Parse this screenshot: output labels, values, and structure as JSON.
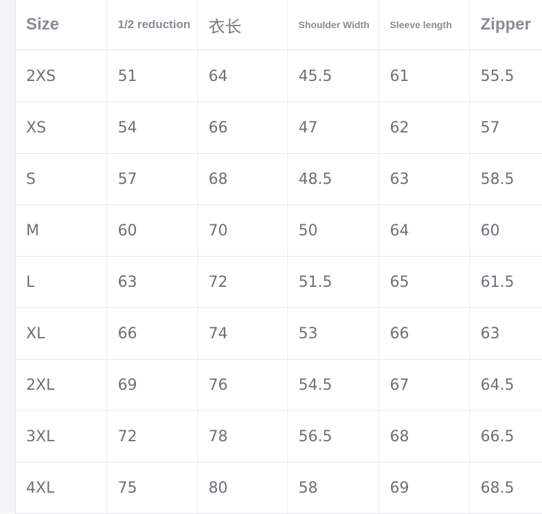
{
  "headers": [
    "Size",
    "1/2 reduction",
    "衣长",
    "Shoulder Width",
    "Sleeve length",
    "Zipper"
  ],
  "rows": [
    [
      "2XS",
      "51",
      "64",
      "45.5",
      "61",
      "55.5"
    ],
    [
      "XS",
      "54",
      "66",
      "47",
      "62",
      "57"
    ],
    [
      "S",
      "57",
      "68",
      "48.5",
      "63",
      "58.5"
    ],
    [
      "M",
      "60",
      "70",
      "50",
      "64",
      "60"
    ],
    [
      "L",
      "63",
      "72",
      "51.5",
      "65",
      "61.5"
    ],
    [
      "XL",
      "66",
      "74",
      "53",
      "66",
      "63"
    ],
    [
      "2XL",
      "69",
      "76",
      "54.5",
      "67",
      "64.5"
    ],
    [
      "3XL",
      "72",
      "78",
      "56.5",
      "68",
      "66.5"
    ],
    [
      "4XL",
      "75",
      "80",
      "58",
      "69",
      "68.5"
    ]
  ]
}
